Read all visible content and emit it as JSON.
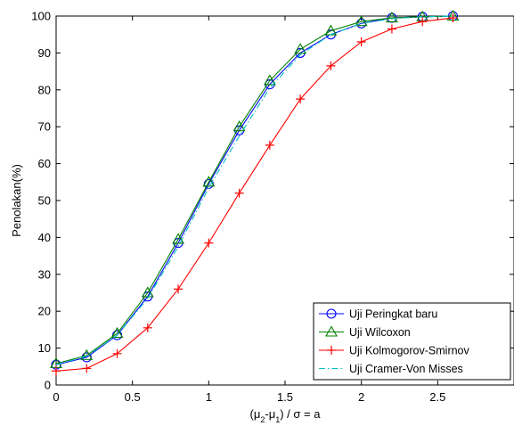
{
  "chart_data": {
    "type": "line",
    "title": "",
    "xlabel": "(μ2-μ1) / σ = a",
    "ylabel": "Penolakan(%)",
    "xlim": [
      0,
      3
    ],
    "ylim": [
      0,
      100
    ],
    "xticks": [
      0,
      0.5,
      1,
      1.5,
      2,
      2.5
    ],
    "xtick_labels": [
      "0",
      "0.5",
      "1",
      "1.5",
      "2",
      "2.5"
    ],
    "yticks": [
      0,
      10,
      20,
      30,
      40,
      50,
      60,
      70,
      80,
      90,
      100
    ],
    "ytick_labels": [
      "0",
      "10",
      "20",
      "30",
      "40",
      "50",
      "60",
      "70",
      "80",
      "90",
      "100"
    ],
    "grid": false,
    "legend_position": "bottom-right",
    "x": [
      0,
      0.2,
      0.4,
      0.6,
      0.8,
      1.0,
      1.2,
      1.4,
      1.6,
      1.8,
      2.0,
      2.2,
      2.4,
      2.6
    ],
    "series": [
      {
        "name": "Uji Peringkat baru",
        "color": "#0000ff",
        "marker": "circle",
        "dash": "solid",
        "values": [
          5.5,
          7.5,
          13.5,
          24,
          38.5,
          54.5,
          69,
          81.5,
          90,
          95,
          98,
          99.5,
          99.8,
          100
        ]
      },
      {
        "name": "Uji Wilcoxon",
        "color": "#008000",
        "marker": "triangle",
        "dash": "solid",
        "values": [
          5.8,
          8,
          14,
          25,
          39.5,
          55,
          70,
          82.5,
          91,
          96,
          98.5,
          99.5,
          99.8,
          100
        ]
      },
      {
        "name": "Uji Kolmogorov-Smirnov",
        "color": "#ff0000",
        "marker": "plus",
        "dash": "solid",
        "values": [
          3.8,
          4.5,
          8.5,
          15.5,
          26,
          38.5,
          52,
          65,
          77.5,
          86.5,
          93,
          96.5,
          98.5,
          99.5
        ]
      },
      {
        "name": "Uji Cramer-Von Misses",
        "color": "#00bfbf",
        "marker": "none",
        "dash": "dashdot",
        "values": [
          5.5,
          7.8,
          13.5,
          23.5,
          37.5,
          53.5,
          67.5,
          80.5,
          89.5,
          95,
          98,
          99.3,
          99.8,
          100
        ]
      }
    ]
  }
}
